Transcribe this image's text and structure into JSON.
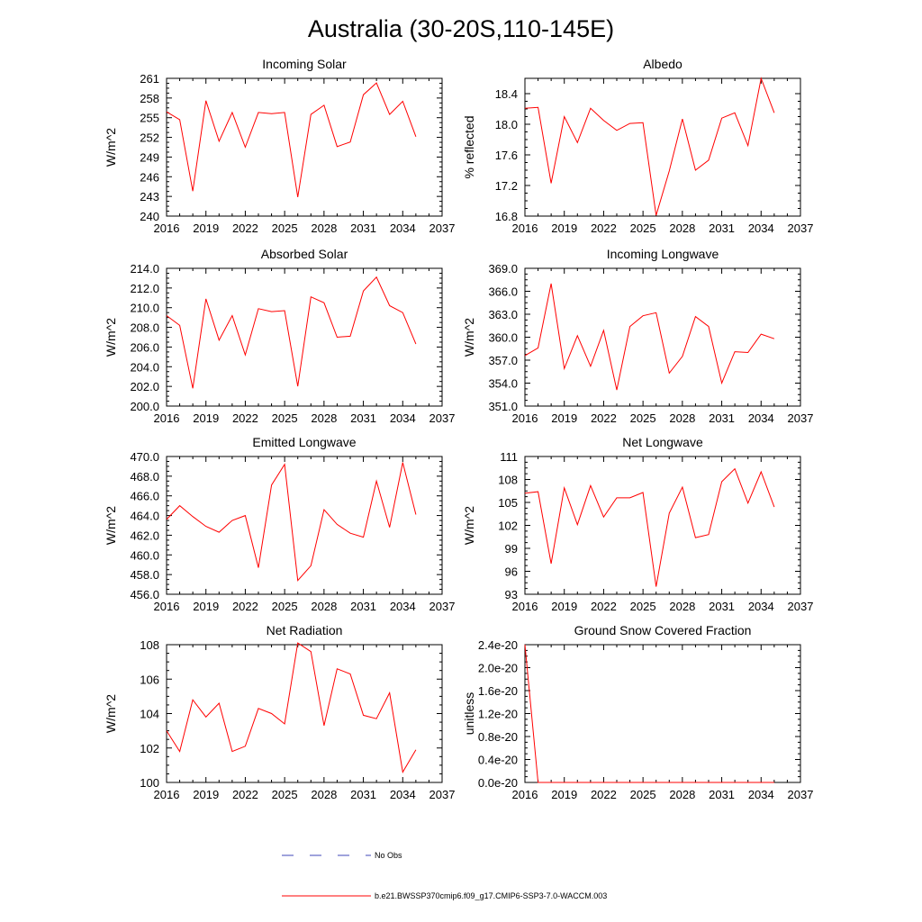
{
  "figure": {
    "title": "Australia (30-20S,110-145E)"
  },
  "legend": {
    "obs_label": "No Obs",
    "model_label": "b.e21.BWSSP370cmip6.f09_g17.CMIP6-SSP3-7.0-WACCM.003",
    "obs_color": "#3f47b8",
    "model_color": "#ff0000"
  },
  "chart_data": [
    {
      "type": "line",
      "title": "Incoming Solar",
      "ylabel": "W/m^2",
      "xlim": [
        2016,
        2037
      ],
      "ylim": [
        240,
        261
      ],
      "xticks": [
        "2016",
        "2019",
        "2022",
        "2025",
        "2028",
        "2031",
        "2034",
        "2037"
      ],
      "yticks": [
        "240",
        "243",
        "246",
        "249",
        "252",
        "255",
        "258",
        "261"
      ],
      "series": [
        {
          "color": "#ff0000",
          "x": [
            2016,
            2017,
            2018,
            2019,
            2020,
            2021,
            2022,
            2023,
            2024,
            2025,
            2026,
            2027,
            2028,
            2029,
            2030,
            2031,
            2032,
            2033,
            2034,
            2035
          ],
          "y": [
            255.9,
            254.7,
            243.8,
            257.6,
            251.4,
            255.8,
            250.5,
            255.8,
            255.6,
            255.8,
            242.9,
            255.5,
            256.9,
            250.6,
            251.3,
            258.5,
            260.3,
            255.5,
            257.5,
            252.1
          ]
        }
      ]
    },
    {
      "type": "line",
      "title": "Albedo",
      "ylabel": "% reflected",
      "xlim": [
        2016,
        2037
      ],
      "ylim": [
        16.8,
        18.6
      ],
      "xticks": [
        "2016",
        "2019",
        "2022",
        "2025",
        "2028",
        "2031",
        "2034",
        "2037"
      ],
      "yticks": [
        "16.8",
        "17.2",
        "17.6",
        "18.0",
        "18.4"
      ],
      "series": [
        {
          "color": "#ff0000",
          "x": [
            2016,
            2017,
            2018,
            2019,
            2020,
            2021,
            2022,
            2023,
            2024,
            2025,
            2026,
            2027,
            2028,
            2029,
            2030,
            2031,
            2032,
            2033,
            2034,
            2035
          ],
          "y": [
            18.21,
            18.22,
            17.23,
            18.1,
            17.76,
            18.21,
            18.05,
            17.92,
            18.01,
            18.02,
            16.81,
            17.39,
            18.07,
            17.4,
            17.53,
            18.08,
            18.15,
            17.72,
            18.6,
            18.15
          ]
        }
      ]
    },
    {
      "type": "line",
      "title": "Absorbed Solar",
      "ylabel": "W/m^2",
      "xlim": [
        2016,
        2037
      ],
      "ylim": [
        200,
        214
      ],
      "xticks": [
        "2016",
        "2019",
        "2022",
        "2025",
        "2028",
        "2031",
        "2034",
        "2037"
      ],
      "yticks": [
        "200.0",
        "202.0",
        "204.0",
        "206.0",
        "208.0",
        "210.0",
        "212.0",
        "214.0"
      ],
      "series": [
        {
          "color": "#ff0000",
          "x": [
            2016,
            2017,
            2018,
            2019,
            2020,
            2021,
            2022,
            2023,
            2024,
            2025,
            2026,
            2027,
            2028,
            2029,
            2030,
            2031,
            2032,
            2033,
            2034,
            2035
          ],
          "y": [
            209.2,
            208.2,
            201.8,
            210.9,
            206.7,
            209.2,
            205.2,
            209.9,
            209.6,
            209.7,
            202.0,
            211.1,
            210.5,
            207.0,
            207.1,
            211.7,
            213.1,
            210.2,
            209.5,
            206.3
          ]
        }
      ]
    },
    {
      "type": "line",
      "title": "Incoming Longwave",
      "ylabel": "W/m^2",
      "xlim": [
        2016,
        2037
      ],
      "ylim": [
        351,
        369
      ],
      "xticks": [
        "2016",
        "2019",
        "2022",
        "2025",
        "2028",
        "2031",
        "2034",
        "2037"
      ],
      "yticks": [
        "351.0",
        "354.0",
        "357.0",
        "360.0",
        "363.0",
        "366.0",
        "369.0"
      ],
      "series": [
        {
          "color": "#ff0000",
          "x": [
            2016,
            2017,
            2018,
            2019,
            2020,
            2021,
            2022,
            2023,
            2024,
            2025,
            2026,
            2027,
            2028,
            2029,
            2030,
            2031,
            2032,
            2033,
            2034,
            2035
          ],
          "y": [
            357.6,
            358.6,
            367.0,
            355.9,
            360.2,
            356.2,
            360.9,
            353.1,
            361.4,
            362.8,
            363.2,
            355.3,
            357.5,
            362.7,
            361.4,
            354.0,
            358.1,
            358.0,
            360.4,
            359.8
          ]
        }
      ]
    },
    {
      "type": "line",
      "title": "Emitted Longwave",
      "ylabel": "W/m^2",
      "xlim": [
        2016,
        2037
      ],
      "ylim": [
        456,
        470
      ],
      "xticks": [
        "2016",
        "2019",
        "2022",
        "2025",
        "2028",
        "2031",
        "2034",
        "2037"
      ],
      "yticks": [
        "456.0",
        "458.0",
        "460.0",
        "462.0",
        "464.0",
        "466.0",
        "468.0",
        "470.0"
      ],
      "series": [
        {
          "color": "#ff0000",
          "x": [
            2016,
            2017,
            2018,
            2019,
            2020,
            2021,
            2022,
            2023,
            2024,
            2025,
            2026,
            2027,
            2028,
            2029,
            2030,
            2031,
            2032,
            2033,
            2034,
            2035
          ],
          "y": [
            463.6,
            465.0,
            463.9,
            462.9,
            462.3,
            463.5,
            464.0,
            458.7,
            467.1,
            469.2,
            457.4,
            458.9,
            464.6,
            463.1,
            462.2,
            461.8,
            467.5,
            462.8,
            469.4,
            464.1
          ]
        }
      ]
    },
    {
      "type": "line",
      "title": "Net Longwave",
      "ylabel": "W/m^2",
      "xlim": [
        2016,
        2037
      ],
      "ylim": [
        93,
        111
      ],
      "xticks": [
        "2016",
        "2019",
        "2022",
        "2025",
        "2028",
        "2031",
        "2034",
        "2037"
      ],
      "yticks": [
        "93",
        "96",
        "99",
        "102",
        "105",
        "108",
        "111"
      ],
      "series": [
        {
          "color": "#ff0000",
          "x": [
            2016,
            2017,
            2018,
            2019,
            2020,
            2021,
            2022,
            2023,
            2024,
            2025,
            2026,
            2027,
            2028,
            2029,
            2030,
            2031,
            2032,
            2033,
            2034,
            2035
          ],
          "y": [
            106.2,
            106.4,
            97.0,
            106.9,
            102.1,
            107.2,
            103.1,
            105.6,
            105.6,
            106.3,
            94.0,
            103.6,
            107.0,
            100.4,
            100.8,
            107.7,
            109.4,
            104.9,
            109.0,
            104.4
          ]
        }
      ]
    },
    {
      "type": "line",
      "title": "Net Radiation",
      "ylabel": "W/m^2",
      "xlim": [
        2016,
        2037
      ],
      "ylim": [
        100,
        108
      ],
      "xticks": [
        "2016",
        "2019",
        "2022",
        "2025",
        "2028",
        "2031",
        "2034",
        "2037"
      ],
      "yticks": [
        "100",
        "102",
        "104",
        "106",
        "108"
      ],
      "series": [
        {
          "color": "#ff0000",
          "x": [
            2016,
            2017,
            2018,
            2019,
            2020,
            2021,
            2022,
            2023,
            2024,
            2025,
            2026,
            2027,
            2028,
            2029,
            2030,
            2031,
            2032,
            2033,
            2034,
            2035
          ],
          "y": [
            103.0,
            101.8,
            104.8,
            103.8,
            104.6,
            101.8,
            102.1,
            104.3,
            104.0,
            103.4,
            108.1,
            107.6,
            103.3,
            106.6,
            106.3,
            103.9,
            103.7,
            105.2,
            100.6,
            101.9
          ]
        }
      ]
    },
    {
      "type": "line",
      "title": "Ground Snow Covered Fraction",
      "ylabel": "unitless",
      "xlim": [
        2016,
        2037
      ],
      "ylim": [
        0,
        2.4e-20
      ],
      "xticks": [
        "2016",
        "2019",
        "2022",
        "2025",
        "2028",
        "2031",
        "2034",
        "2037"
      ],
      "yticks": [
        "0.0e-20",
        "0.4e-20",
        "0.8e-20",
        "1.2e-20",
        "1.6e-20",
        "2.0e-20",
        "2.4e-20"
      ],
      "series": [
        {
          "color": "#ff0000",
          "x": [
            2016,
            2017,
            2018,
            2019,
            2020,
            2021,
            2022,
            2023,
            2024,
            2025,
            2026,
            2027,
            2028,
            2029,
            2030,
            2031,
            2032,
            2033,
            2034,
            2035
          ],
          "y": [
            2.4e-20,
            0,
            0,
            0,
            0,
            0,
            0,
            0,
            0,
            0,
            0,
            0,
            0,
            0,
            0,
            0,
            0,
            0,
            0,
            0
          ]
        }
      ]
    }
  ]
}
